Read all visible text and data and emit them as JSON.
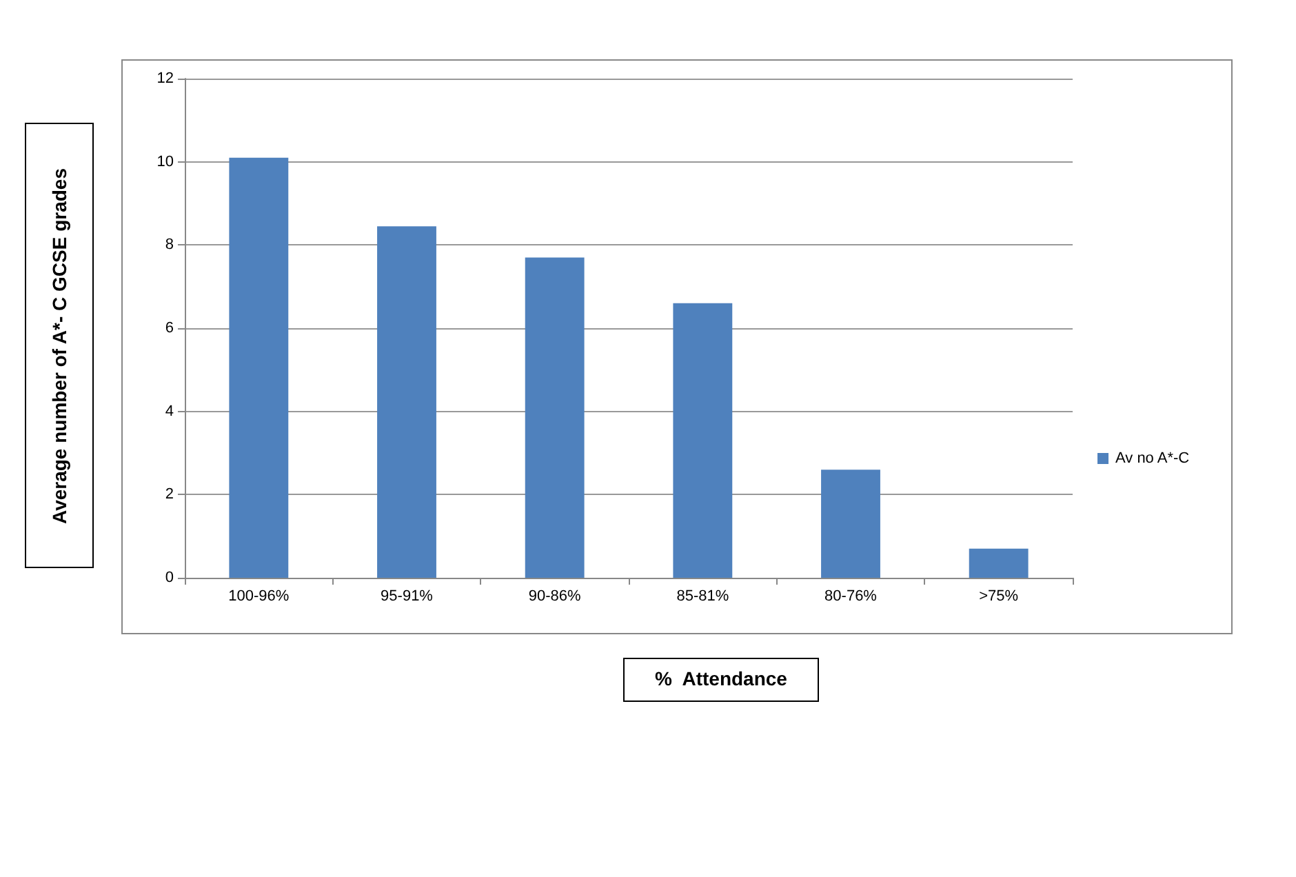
{
  "chart_data": {
    "type": "bar",
    "categories": [
      "100-96%",
      "95-91%",
      "90-86%",
      "85-81%",
      "80-76%",
      ">75%"
    ],
    "series": [
      {
        "name": "Av no A*-C",
        "color": "#4f81bd",
        "values": [
          10.1,
          8.45,
          7.7,
          6.6,
          2.6,
          0.7
        ]
      }
    ],
    "xlabel": "%  Attendance",
    "ylabel": "Average number of A*- C GCSE grades",
    "ylim": [
      0,
      12
    ],
    "yticks": [
      0,
      2,
      4,
      6,
      8,
      10,
      12
    ],
    "grid": "y",
    "legend": "right"
  }
}
